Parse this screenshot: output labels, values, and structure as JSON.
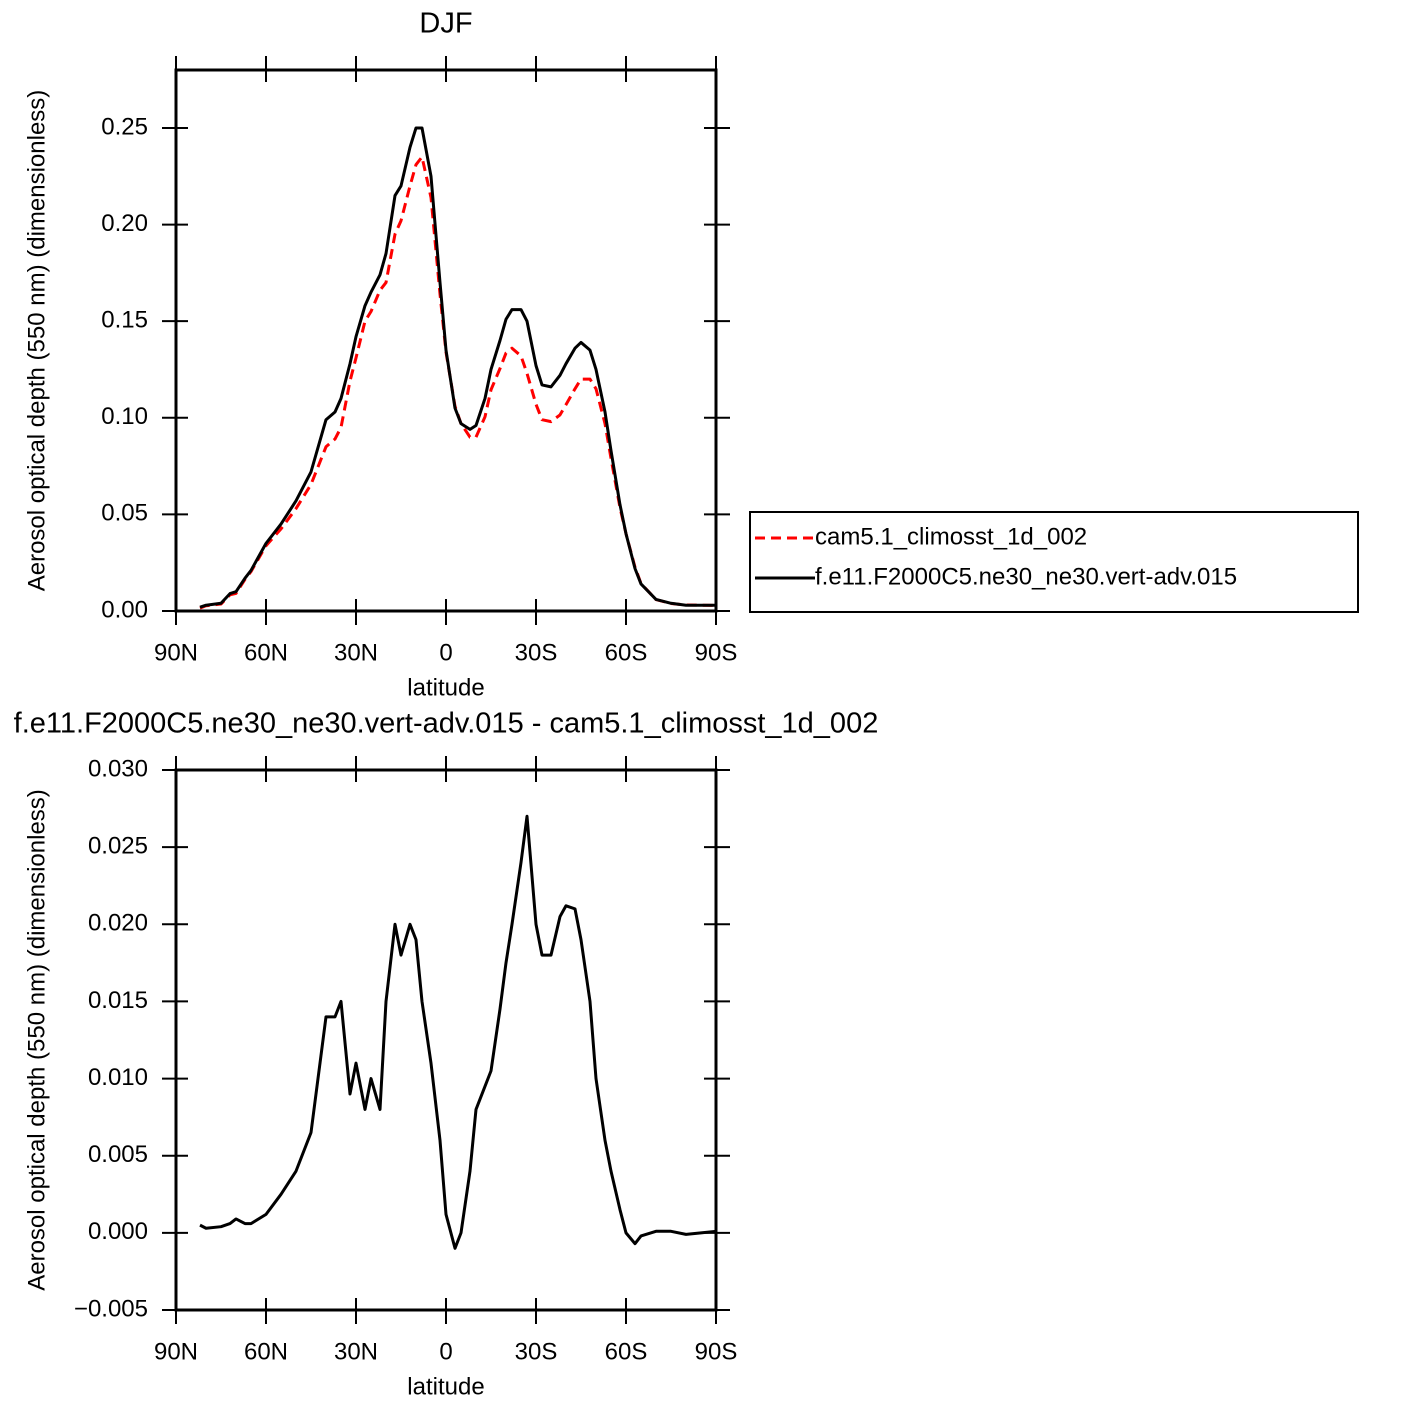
{
  "chart_data": [
    {
      "type": "line",
      "title": "DJF",
      "xlabel": "latitude",
      "ylabel": "Aerosol optical depth (550 nm) (dimensionless)",
      "x": [
        82,
        80,
        75,
        72,
        70,
        67,
        65,
        60,
        55,
        50,
        45,
        40,
        37,
        35,
        32,
        30,
        27,
        25,
        22,
        20,
        17,
        15,
        12,
        10,
        8,
        5,
        2,
        0,
        -3,
        -5,
        -8,
        -10,
        -13,
        -15,
        -18,
        -20,
        -22,
        -25,
        -27,
        -30,
        -32,
        -35,
        -38,
        -40,
        -43,
        -45,
        -48,
        -50,
        -53,
        -55,
        -58,
        -60,
        -63,
        -65,
        -70,
        -75,
        -80,
        -85,
        -90
      ],
      "series": [
        {
          "name": "cam5.1_climosst_1d_002",
          "color": "#ff0000",
          "dashed": true,
          "values": [
            0.0015,
            0.0027,
            0.0036,
            0.0084,
            0.0091,
            0.0164,
            0.0204,
            0.0338,
            0.0425,
            0.053,
            0.0655,
            0.085,
            0.089,
            0.095,
            0.119,
            0.131,
            0.15,
            0.155,
            0.166,
            0.17,
            0.195,
            0.202,
            0.22,
            0.231,
            0.235,
            0.214,
            0.164,
            0.134,
            0.106,
            0.097,
            0.09,
            0.09,
            0.1005,
            0.1145,
            0.1255,
            0.1335,
            0.136,
            0.132,
            0.123,
            0.107,
            0.099,
            0.098,
            0.1015,
            0.1068,
            0.115,
            0.12,
            0.12,
            0.115,
            0.097,
            0.079,
            0.0535,
            0.04,
            0.0227,
            0.0142,
            0.0059,
            0.0039,
            0.0031,
            0.003,
            0.0029
          ]
        },
        {
          "name": "f.e11.F2000C5.ne30_ne30.vert-adv.015",
          "color": "#000000",
          "dashed": false,
          "values": [
            0.002,
            0.003,
            0.004,
            0.009,
            0.01,
            0.017,
            0.021,
            0.035,
            0.045,
            0.057,
            0.072,
            0.099,
            0.103,
            0.11,
            0.128,
            0.142,
            0.158,
            0.165,
            0.174,
            0.185,
            0.215,
            0.22,
            0.24,
            0.25,
            0.25,
            0.225,
            0.17,
            0.135,
            0.105,
            0.097,
            0.094,
            0.096,
            0.11,
            0.125,
            0.14,
            0.151,
            0.156,
            0.156,
            0.15,
            0.127,
            0.117,
            0.116,
            0.122,
            0.128,
            0.136,
            0.139,
            0.135,
            0.125,
            0.103,
            0.083,
            0.055,
            0.04,
            0.022,
            0.014,
            0.006,
            0.004,
            0.003,
            0.003,
            0.003
          ]
        }
      ],
      "xlim": [
        90,
        -90
      ],
      "xticks": [
        {
          "value": 90,
          "label": "90N"
        },
        {
          "value": 60,
          "label": "60N"
        },
        {
          "value": 30,
          "label": "30N"
        },
        0,
        {
          "value": -30,
          "label": "30S"
        },
        {
          "value": -60,
          "label": "60S"
        },
        {
          "value": -90,
          "label": "90S"
        }
      ],
      "ylim": [
        0,
        0.28
      ],
      "yticks": [
        {
          "value": 0,
          "label": "0.00"
        },
        {
          "value": 0.05,
          "label": "0.05"
        },
        {
          "value": 0.1,
          "label": "0.10"
        },
        {
          "value": 0.15,
          "label": "0.15"
        },
        {
          "value": 0.2,
          "label": "0.20"
        },
        {
          "value": 0.25,
          "label": "0.25"
        }
      ],
      "legend": "right"
    },
    {
      "type": "line",
      "title": "f.e11.F2000C5.ne30_ne30.vert-adv.015 - cam5.1_climosst_1d_002",
      "xlabel": "latitude",
      "ylabel": "Aerosol optical depth (550 nm) (dimensionless)",
      "x": [
        82,
        80,
        75,
        72,
        70,
        67,
        65,
        60,
        55,
        50,
        45,
        40,
        37,
        35,
        32,
        30,
        27,
        25,
        22,
        20,
        17,
        15,
        12,
        10,
        8,
        5,
        2,
        0,
        -3,
        -5,
        -8,
        -10,
        -13,
        -15,
        -18,
        -20,
        -22,
        -25,
        -27,
        -30,
        -32,
        -35,
        -38,
        -40,
        -43,
        -45,
        -48,
        -50,
        -53,
        -55,
        -58,
        -60,
        -63,
        -65,
        -70,
        -75,
        -80,
        -85,
        -90
      ],
      "series": [
        {
          "color": "#000000",
          "dashed": false,
          "values": [
            0.0005,
            0.0003,
            0.0004,
            0.0006,
            0.0009,
            0.0006,
            0.0006,
            0.0012,
            0.0025,
            0.004,
            0.0065,
            0.014,
            0.014,
            0.015,
            0.009,
            0.011,
            0.008,
            0.01,
            0.008,
            0.015,
            0.02,
            0.018,
            0.02,
            0.019,
            0.015,
            0.011,
            0.006,
            0.0012,
            -0.001,
            0.0,
            0.004,
            0.008,
            0.0095,
            0.0105,
            0.0145,
            0.0175,
            0.02,
            0.024,
            0.027,
            0.02,
            0.018,
            0.018,
            0.0205,
            0.0212,
            0.021,
            0.019,
            0.015,
            0.01,
            0.006,
            0.004,
            0.0015,
            0.0,
            -0.0007,
            -0.0002,
            0.0001,
            0.0001,
            -0.0001,
            0.0,
            0.0001
          ]
        }
      ],
      "xlim": [
        90,
        -90
      ],
      "xticks": [
        {
          "value": 90,
          "label": "90N"
        },
        {
          "value": 60,
          "label": "60N"
        },
        {
          "value": 30,
          "label": "30N"
        },
        0,
        {
          "value": -30,
          "label": "30S"
        },
        {
          "value": -60,
          "label": "60S"
        },
        {
          "value": -90,
          "label": "90S"
        }
      ],
      "ylim": [
        -0.005,
        0.03
      ],
      "yticks": [
        {
          "value": -0.005,
          "label": "−0.005"
        },
        {
          "value": 0,
          "label": "0.000"
        },
        {
          "value": 0.005,
          "label": "0.005"
        },
        {
          "value": 0.01,
          "label": "0.010"
        },
        {
          "value": 0.015,
          "label": "0.015"
        },
        {
          "value": 0.02,
          "label": "0.020"
        },
        {
          "value": 0.025,
          "label": "0.025"
        },
        {
          "value": 0.03,
          "label": "0.030"
        }
      ]
    }
  ]
}
